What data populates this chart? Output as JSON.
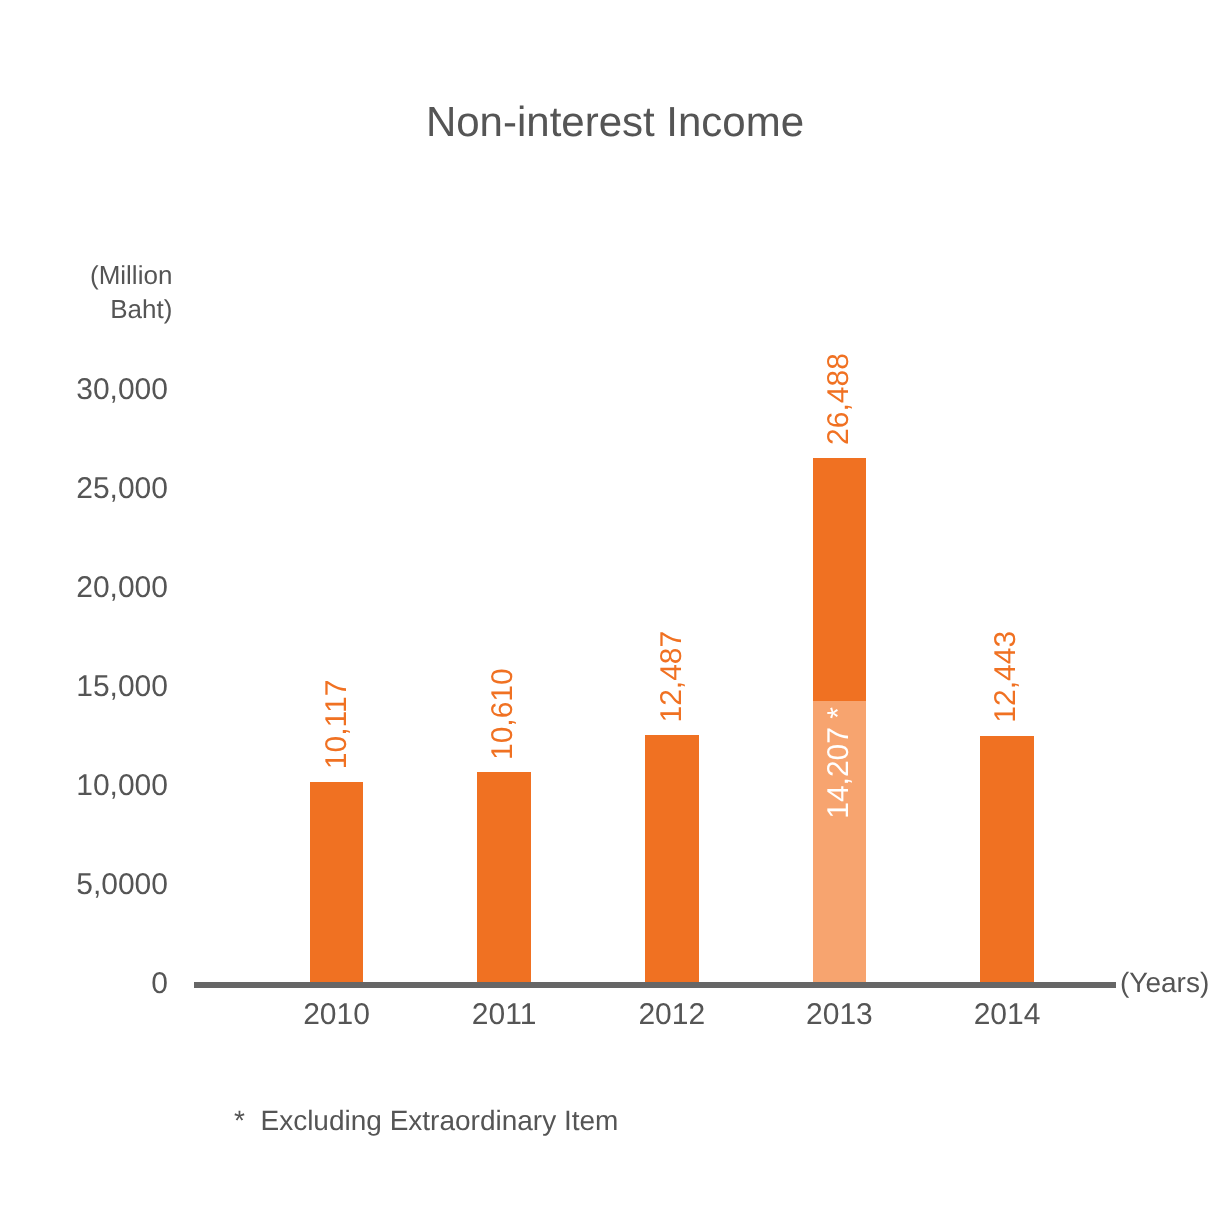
{
  "chart_data": {
    "type": "bar",
    "title": "Non-interest Income",
    "ylabel": "(Million Baht)",
    "xlabel": "(Years)",
    "categories": [
      "2010",
      "2011",
      "2012",
      "2013",
      "2014"
    ],
    "stacked": true,
    "series": [
      {
        "colors": [
          "#f07122",
          "#f07122",
          "#f07122",
          "#f7a46f",
          "#f07122"
        ],
        "values": [
          10117,
          10610,
          12487,
          14207,
          12443
        ],
        "value_labels": [
          null,
          null,
          null,
          "14,207 *",
          null
        ]
      },
      {
        "color": "#f07122",
        "values": [
          null,
          null,
          null,
          12281,
          null
        ]
      }
    ],
    "totals": [
      "10,117",
      "10,610",
      "12,487",
      "26,488",
      "12,443"
    ],
    "ylim": [
      0,
      30000
    ],
    "yticks": [
      0,
      {
        "value": 5000,
        "label": "5,0000"
      },
      {
        "value": 10000,
        "label": "10,000"
      },
      {
        "value": 15000,
        "label": "15,000"
      },
      {
        "value": 20000,
        "label": "20,000"
      },
      {
        "value": 25000,
        "label": "25,000"
      },
      {
        "value": 30000,
        "label": "30,000"
      }
    ],
    "legend": false,
    "annotations": [
      "*  Excluding Extraordinary Item"
    ]
  }
}
